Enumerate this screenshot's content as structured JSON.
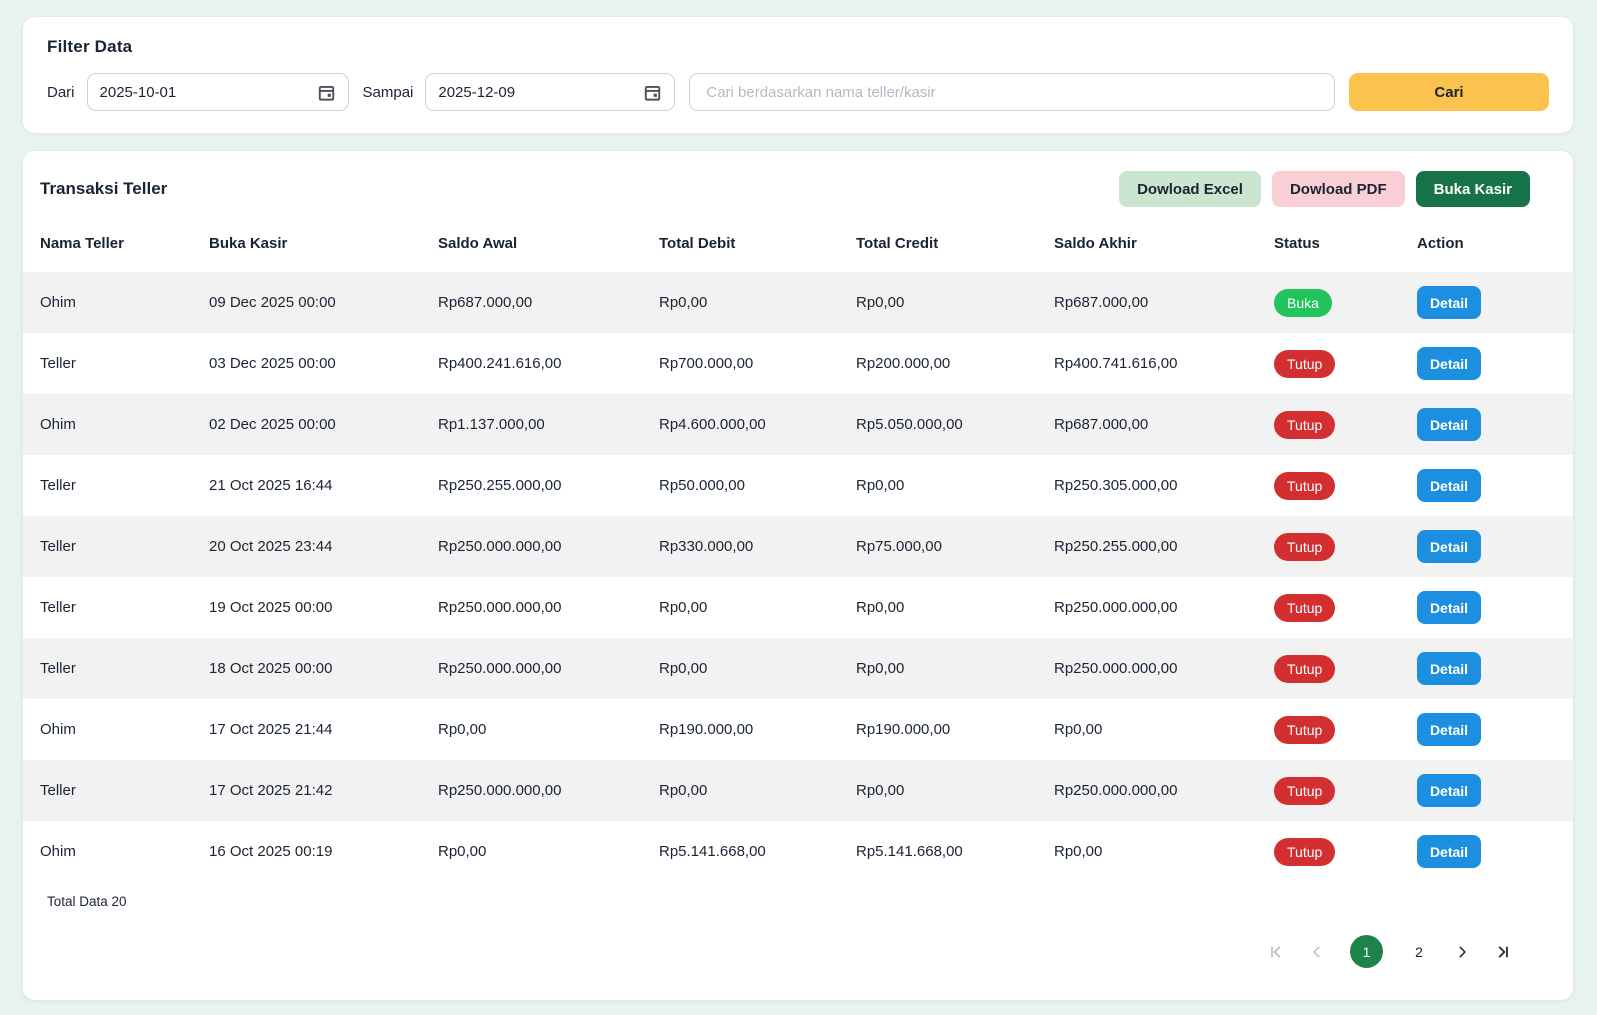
{
  "filter": {
    "title": "Filter Data",
    "dari_label": "Dari",
    "dari_value": "2025-10-01",
    "sampai_label": "Sampai",
    "sampai_value": "2025-12-09",
    "search_placeholder": "Cari berdasarkan nama teller/kasir",
    "cari_label": "Cari"
  },
  "table": {
    "title": "Transaksi Teller",
    "buttons": {
      "excel": "Dowload Excel",
      "pdf": "Dowload PDF",
      "buka_kasir": "Buka Kasir"
    },
    "columns": [
      "Nama Teller",
      "Buka Kasir",
      "Saldo Awal",
      "Total Debit",
      "Total Credit",
      "Saldo Akhir",
      "Status",
      "Action"
    ],
    "detail_label": "Detail",
    "status_open_label": "Buka",
    "status_closed_label": "Tutup",
    "rows": [
      {
        "nama": "Ohim",
        "buka_kasir": "09 Dec 2025 00:00",
        "saldo_awal": "Rp687.000,00",
        "total_debit": "Rp0,00",
        "total_credit": "Rp0,00",
        "saldo_akhir": "Rp687.000,00",
        "status": "Buka"
      },
      {
        "nama": "Teller",
        "buka_kasir": "03 Dec 2025 00:00",
        "saldo_awal": "Rp400.241.616,00",
        "total_debit": "Rp700.000,00",
        "total_credit": "Rp200.000,00",
        "saldo_akhir": "Rp400.741.616,00",
        "status": "Tutup"
      },
      {
        "nama": "Ohim",
        "buka_kasir": "02 Dec 2025 00:00",
        "saldo_awal": "Rp1.137.000,00",
        "total_debit": "Rp4.600.000,00",
        "total_credit": "Rp5.050.000,00",
        "saldo_akhir": "Rp687.000,00",
        "status": "Tutup"
      },
      {
        "nama": "Teller",
        "buka_kasir": "21 Oct 2025 16:44",
        "saldo_awal": "Rp250.255.000,00",
        "total_debit": "Rp50.000,00",
        "total_credit": "Rp0,00",
        "saldo_akhir": "Rp250.305.000,00",
        "status": "Tutup"
      },
      {
        "nama": "Teller",
        "buka_kasir": "20 Oct 2025 23:44",
        "saldo_awal": "Rp250.000.000,00",
        "total_debit": "Rp330.000,00",
        "total_credit": "Rp75.000,00",
        "saldo_akhir": "Rp250.255.000,00",
        "status": "Tutup"
      },
      {
        "nama": "Teller",
        "buka_kasir": "19 Oct 2025 00:00",
        "saldo_awal": "Rp250.000.000,00",
        "total_debit": "Rp0,00",
        "total_credit": "Rp0,00",
        "saldo_akhir": "Rp250.000.000,00",
        "status": "Tutup"
      },
      {
        "nama": "Teller",
        "buka_kasir": "18 Oct 2025 00:00",
        "saldo_awal": "Rp250.000.000,00",
        "total_debit": "Rp0,00",
        "total_credit": "Rp0,00",
        "saldo_akhir": "Rp250.000.000,00",
        "status": "Tutup"
      },
      {
        "nama": "Ohim",
        "buka_kasir": "17 Oct 2025 21:44",
        "saldo_awal": "Rp0,00",
        "total_debit": "Rp190.000,00",
        "total_credit": "Rp190.000,00",
        "saldo_akhir": "Rp0,00",
        "status": "Tutup"
      },
      {
        "nama": "Teller",
        "buka_kasir": "17 Oct 2025 21:42",
        "saldo_awal": "Rp250.000.000,00",
        "total_debit": "Rp0,00",
        "total_credit": "Rp0,00",
        "saldo_akhir": "Rp250.000.000,00",
        "status": "Tutup"
      },
      {
        "nama": "Ohim",
        "buka_kasir": "16 Oct 2025 00:19",
        "saldo_awal": "Rp0,00",
        "total_debit": "Rp5.141.668,00",
        "total_credit": "Rp5.141.668,00",
        "saldo_akhir": "Rp0,00",
        "status": "Tutup"
      }
    ],
    "total_label": "Total Data 20"
  },
  "pagination": {
    "pages": [
      "1",
      "2"
    ],
    "active_page": "1"
  },
  "icons": {
    "calendar": "calendar-icon",
    "first_page": "first-page-icon",
    "prev_page": "chevron-left-icon",
    "next_page": "chevron-right-icon",
    "last_page": "last-page-icon"
  },
  "colors": {
    "page_background": "#e7f3ec",
    "accent_amber": "#fbc24d",
    "excel_button": "#cbe6d0",
    "pdf_button": "#f9cfd5",
    "dark_green_button": "#157347",
    "status_open": "#24c45c",
    "status_closed": "#d32f30",
    "detail_blue": "#1d8fe1",
    "row_stripe": "#f2f2f2",
    "pagination_active": "#1d8348"
  }
}
